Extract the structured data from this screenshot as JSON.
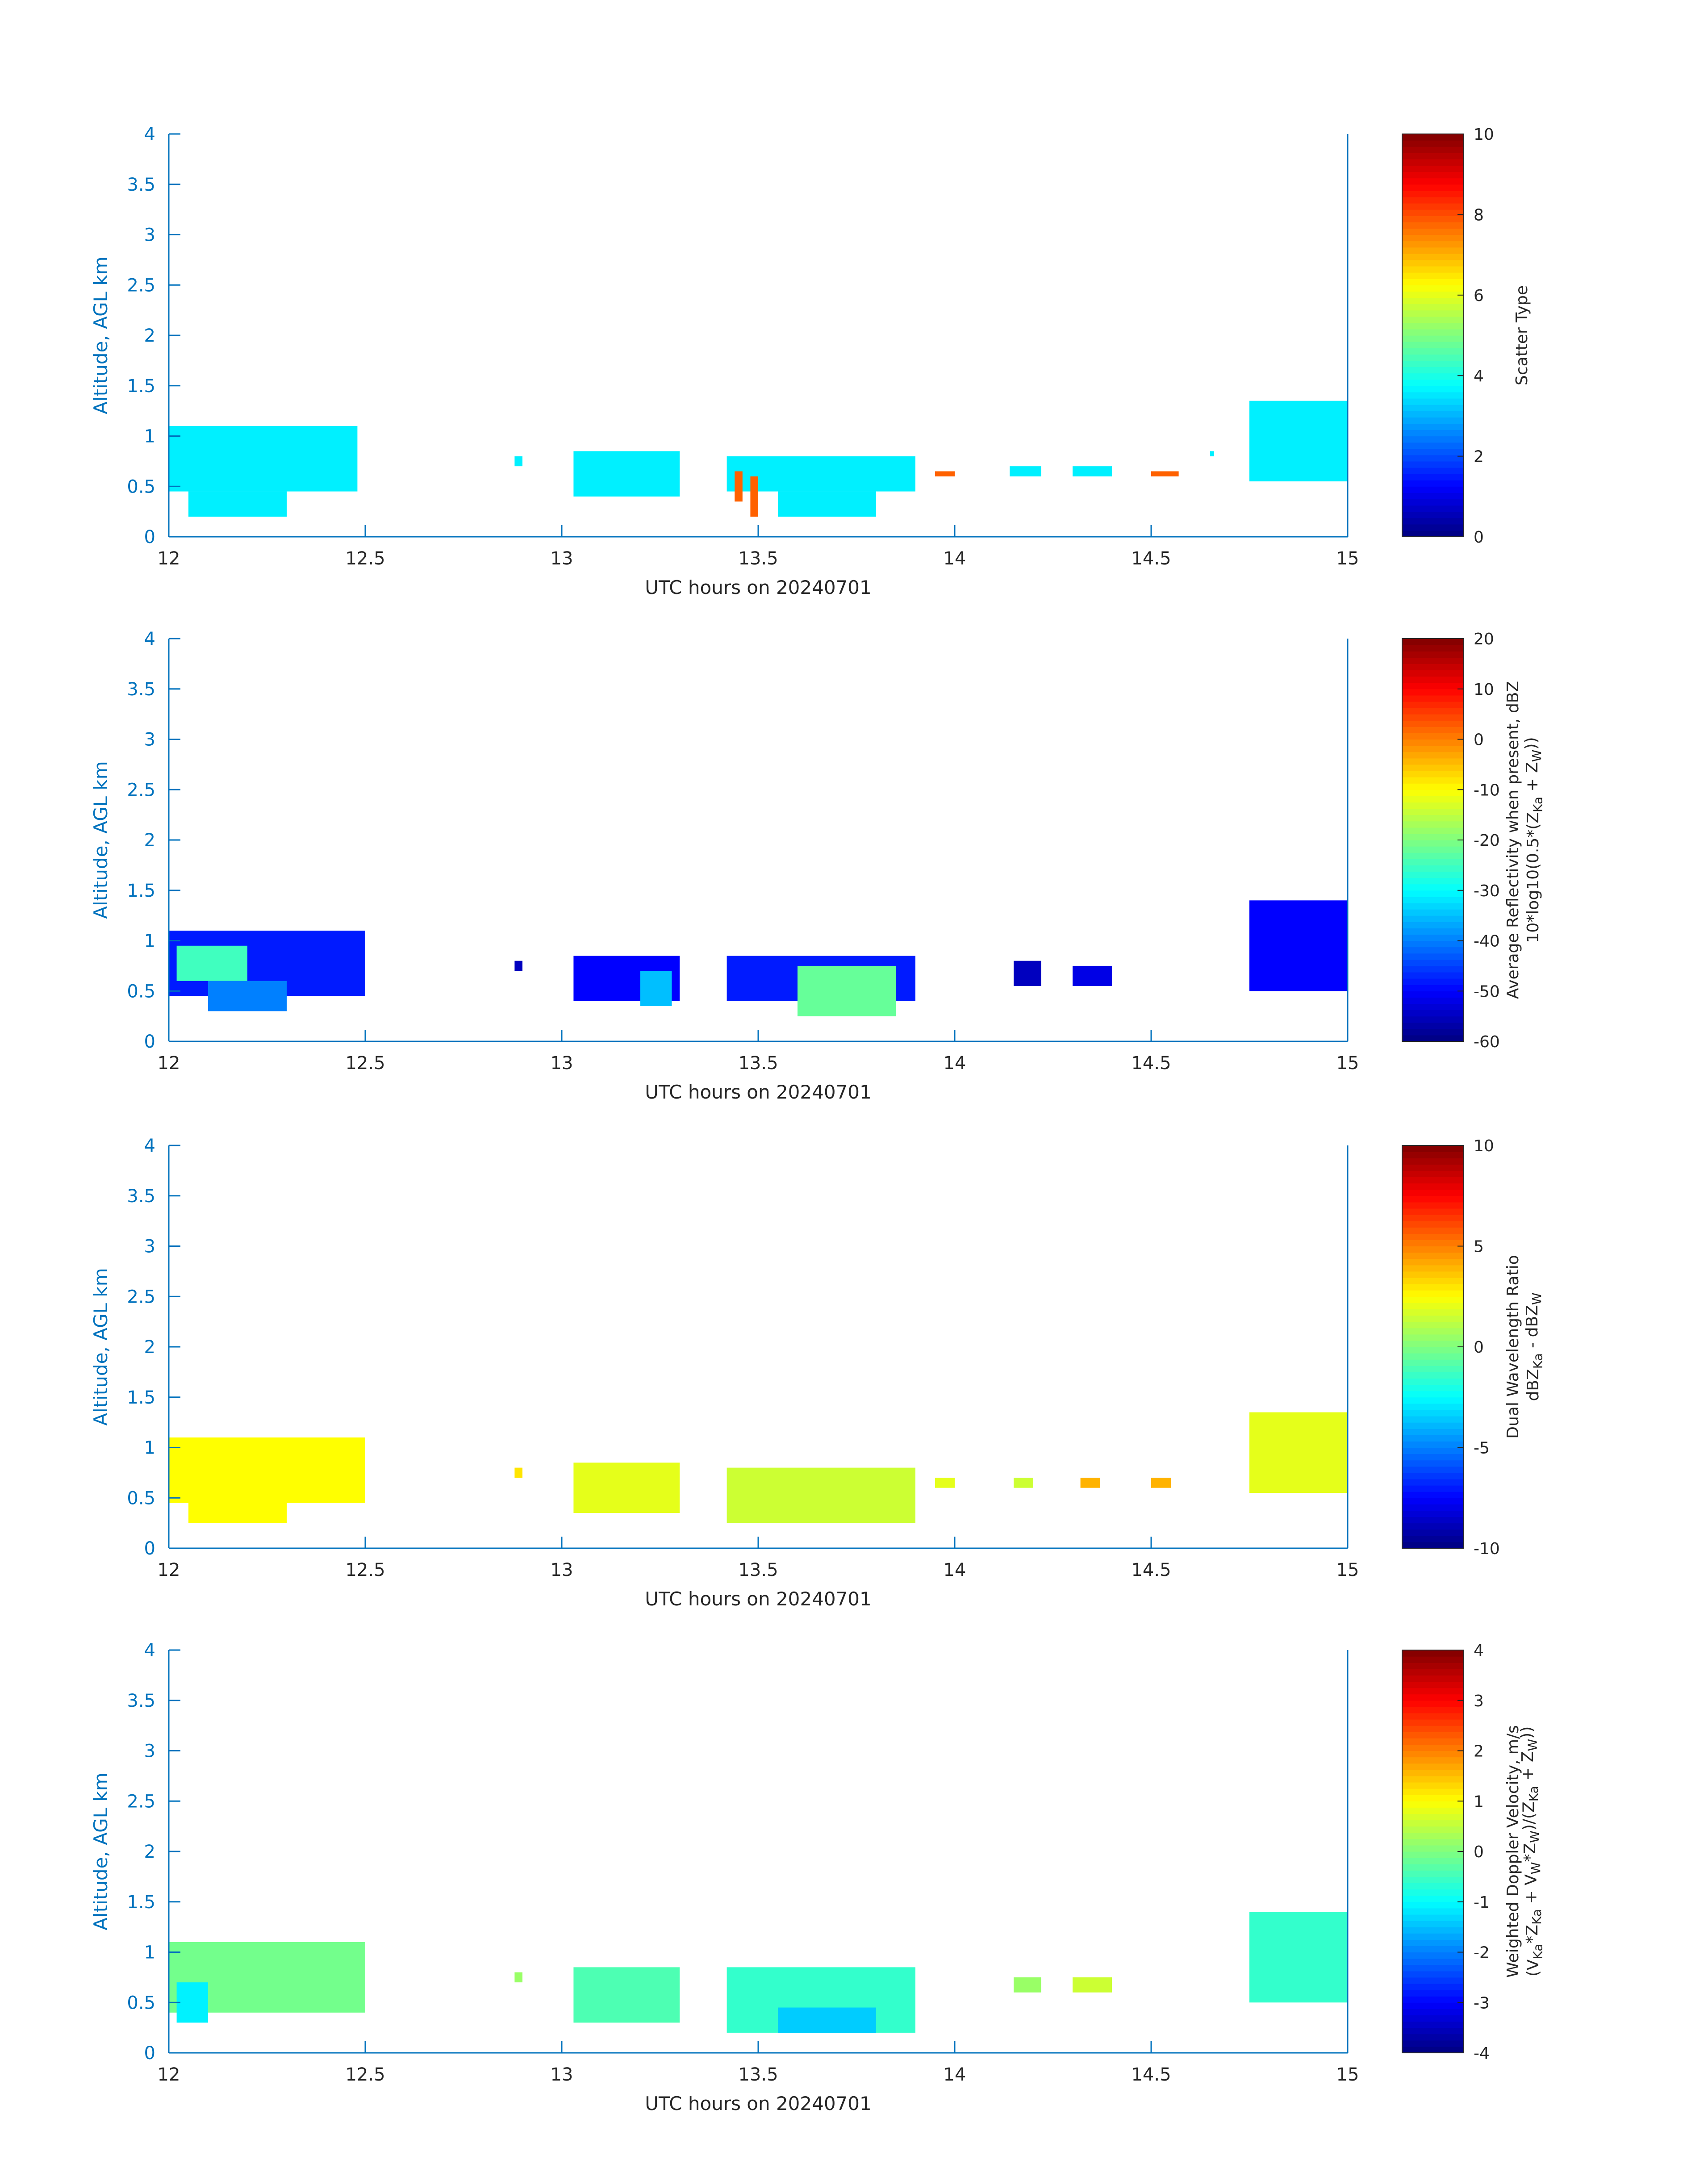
{
  "colors": {
    "axis_blue": "#0072BD",
    "text_dark": "#262626"
  },
  "chart_data": [
    {
      "type": "heatmap",
      "xlabel": "UTC hours on 20240701",
      "ylabel": "Altitude, AGL km",
      "xlim": [
        12,
        15
      ],
      "ylim": [
        0,
        4
      ],
      "xticks": [
        "12",
        "12.5",
        "13",
        "13.5",
        "14",
        "14.5",
        "15"
      ],
      "yticks": [
        "0",
        "0.5",
        "1",
        "1.5",
        "2",
        "2.5",
        "3",
        "3.5",
        "4"
      ],
      "colorbar": {
        "label": [
          "Scatter Type"
        ],
        "clim": [
          0,
          10
        ],
        "ticks": [
          "0",
          "2",
          "4",
          "6",
          "8",
          "10"
        ],
        "colormap": "jet"
      },
      "patches": [
        {
          "x": [
            12.0,
            12.48
          ],
          "y": [
            0.45,
            1.1
          ],
          "v": 3.6
        },
        {
          "x": [
            12.05,
            12.3
          ],
          "y": [
            0.2,
            0.45
          ],
          "v": 3.6
        },
        {
          "x": [
            12.88,
            12.9
          ],
          "y": [
            0.7,
            0.8
          ],
          "v": 3.6
        },
        {
          "x": [
            13.03,
            13.3
          ],
          "y": [
            0.4,
            0.85
          ],
          "v": 3.6
        },
        {
          "x": [
            13.42,
            13.9
          ],
          "y": [
            0.45,
            0.8
          ],
          "v": 3.6
        },
        {
          "x": [
            13.55,
            13.8
          ],
          "y": [
            0.2,
            0.45
          ],
          "v": 3.6
        },
        {
          "x": [
            14.14,
            14.22
          ],
          "y": [
            0.6,
            0.7
          ],
          "v": 3.6
        },
        {
          "x": [
            14.3,
            14.4
          ],
          "y": [
            0.6,
            0.7
          ],
          "v": 3.6
        },
        {
          "x": [
            14.65,
            14.66
          ],
          "y": [
            0.8,
            0.85
          ],
          "v": 3.6
        },
        {
          "x": [
            14.75,
            15.0
          ],
          "y": [
            0.55,
            1.35
          ],
          "v": 3.6
        },
        {
          "x": [
            13.48,
            13.5
          ],
          "y": [
            0.2,
            0.6
          ],
          "v": 7.8
        },
        {
          "x": [
            13.44,
            13.46
          ],
          "y": [
            0.35,
            0.65
          ],
          "v": 7.8
        },
        {
          "x": [
            13.95,
            14.0
          ],
          "y": [
            0.6,
            0.65
          ],
          "v": 7.8
        },
        {
          "x": [
            14.5,
            14.57
          ],
          "y": [
            0.6,
            0.65
          ],
          "v": 7.8
        }
      ]
    },
    {
      "type": "heatmap",
      "xlabel": "UTC hours on 20240701",
      "ylabel": "Altitude, AGL km",
      "xlim": [
        12,
        15
      ],
      "ylim": [
        0,
        4
      ],
      "xticks": [
        "12",
        "12.5",
        "13",
        "13.5",
        "14",
        "14.5",
        "15"
      ],
      "yticks": [
        "0",
        "0.5",
        "1",
        "1.5",
        "2",
        "2.5",
        "3",
        "3.5",
        "4"
      ],
      "colorbar": {
        "label": [
          "Average Reflectivity when present, dBZ",
          "10*log10(0.5*(Z",
          "Ka",
          " + Z",
          "W",
          "))"
        ],
        "clim": [
          -60,
          20
        ],
        "ticks": [
          "-60",
          "-50",
          "-40",
          "-30",
          "-20",
          "-10",
          "0",
          "10",
          "20"
        ],
        "colormap": "jet"
      },
      "patches": [
        {
          "x": [
            12.0,
            12.5
          ],
          "y": [
            0.45,
            1.1
          ],
          "v": -48
        },
        {
          "x": [
            12.02,
            12.2
          ],
          "y": [
            0.6,
            0.95
          ],
          "v": -25
        },
        {
          "x": [
            12.1,
            12.3
          ],
          "y": [
            0.3,
            0.6
          ],
          "v": -40
        },
        {
          "x": [
            12.88,
            12.9
          ],
          "y": [
            0.7,
            0.8
          ],
          "v": -55
        },
        {
          "x": [
            13.03,
            13.3
          ],
          "y": [
            0.4,
            0.85
          ],
          "v": -50
        },
        {
          "x": [
            13.2,
            13.28
          ],
          "y": [
            0.35,
            0.7
          ],
          "v": -35
        },
        {
          "x": [
            13.42,
            13.9
          ],
          "y": [
            0.4,
            0.85
          ],
          "v": -48
        },
        {
          "x": [
            13.6,
            13.85
          ],
          "y": [
            0.25,
            0.75
          ],
          "v": -22
        },
        {
          "x": [
            14.15,
            14.22
          ],
          "y": [
            0.55,
            0.8
          ],
          "v": -55
        },
        {
          "x": [
            14.3,
            14.4
          ],
          "y": [
            0.55,
            0.75
          ],
          "v": -52
        },
        {
          "x": [
            14.75,
            15.0
          ],
          "y": [
            0.5,
            1.4
          ],
          "v": -50
        }
      ]
    },
    {
      "type": "heatmap",
      "xlabel": "UTC hours on 20240701",
      "ylabel": "Altitude, AGL km",
      "xlim": [
        12,
        15
      ],
      "ylim": [
        0,
        4
      ],
      "xticks": [
        "12",
        "12.5",
        "13",
        "13.5",
        "14",
        "14.5",
        "15"
      ],
      "yticks": [
        "0",
        "0.5",
        "1",
        "1.5",
        "2",
        "2.5",
        "3",
        "3.5",
        "4"
      ],
      "colorbar": {
        "label": [
          "Dual Wavelength Ratio",
          "dBZ",
          "Ka",
          " - dBZ",
          "W"
        ],
        "clim": [
          -10,
          10
        ],
        "ticks": [
          "-10",
          "-5",
          "0",
          "5",
          "10"
        ],
        "colormap": "jet"
      },
      "patches": [
        {
          "x": [
            12.0,
            12.5
          ],
          "y": [
            0.45,
            1.1
          ],
          "v": 2.5
        },
        {
          "x": [
            12.05,
            12.3
          ],
          "y": [
            0.25,
            0.45
          ],
          "v": 2.5
        },
        {
          "x": [
            12.88,
            12.9
          ],
          "y": [
            0.7,
            0.8
          ],
          "v": 3
        },
        {
          "x": [
            13.03,
            13.3
          ],
          "y": [
            0.35,
            0.85
          ],
          "v": 2
        },
        {
          "x": [
            13.42,
            13.9
          ],
          "y": [
            0.25,
            0.8
          ],
          "v": 1.5
        },
        {
          "x": [
            13.95,
            14.0
          ],
          "y": [
            0.6,
            0.7
          ],
          "v": 2
        },
        {
          "x": [
            14.15,
            14.2
          ],
          "y": [
            0.6,
            0.7
          ],
          "v": 1.5
        },
        {
          "x": [
            14.32,
            14.37
          ],
          "y": [
            0.6,
            0.7
          ],
          "v": 4
        },
        {
          "x": [
            14.5,
            14.55
          ],
          "y": [
            0.6,
            0.7
          ],
          "v": 4
        },
        {
          "x": [
            14.75,
            15.0
          ],
          "y": [
            0.55,
            1.35
          ],
          "v": 2
        }
      ]
    },
    {
      "type": "heatmap",
      "xlabel": "UTC hours on 20240701",
      "ylabel": "Altitude, AGL km",
      "xlim": [
        12,
        15
      ],
      "ylim": [
        0,
        4
      ],
      "xticks": [
        "12",
        "12.5",
        "13",
        "13.5",
        "14",
        "14.5",
        "15"
      ],
      "yticks": [
        "0",
        "0.5",
        "1",
        "1.5",
        "2",
        "2.5",
        "3",
        "3.5",
        "4"
      ],
      "colorbar": {
        "label": [
          "Weighted Doppler Velocity, m/s",
          "(V",
          "Ka",
          "*Z",
          "Ka",
          " + V",
          "W",
          "*Z",
          "W",
          ")/(Z",
          "Ka",
          " + Z",
          "W",
          "))"
        ],
        "clim": [
          -4,
          4
        ],
        "ticks": [
          "-4",
          "-3",
          "-2",
          "-1",
          "0",
          "1",
          "2",
          "3",
          "4"
        ],
        "colormap": "jet"
      },
      "patches": [
        {
          "x": [
            12.0,
            12.5
          ],
          "y": [
            0.4,
            1.1
          ],
          "v": -0.1
        },
        {
          "x": [
            12.02,
            12.1
          ],
          "y": [
            0.3,
            0.7
          ],
          "v": -1.1
        },
        {
          "x": [
            12.88,
            12.9
          ],
          "y": [
            0.7,
            0.8
          ],
          "v": 0.2
        },
        {
          "x": [
            13.03,
            13.3
          ],
          "y": [
            0.3,
            0.85
          ],
          "v": -0.4
        },
        {
          "x": [
            13.42,
            13.9
          ],
          "y": [
            0.2,
            0.85
          ],
          "v": -0.6
        },
        {
          "x": [
            13.55,
            13.8
          ],
          "y": [
            0.2,
            0.45
          ],
          "v": -1.4
        },
        {
          "x": [
            14.15,
            14.22
          ],
          "y": [
            0.6,
            0.75
          ],
          "v": 0.2
        },
        {
          "x": [
            14.3,
            14.4
          ],
          "y": [
            0.6,
            0.75
          ],
          "v": 0.6
        },
        {
          "x": [
            14.75,
            15.0
          ],
          "y": [
            0.5,
            1.4
          ],
          "v": -0.6
        }
      ]
    }
  ]
}
